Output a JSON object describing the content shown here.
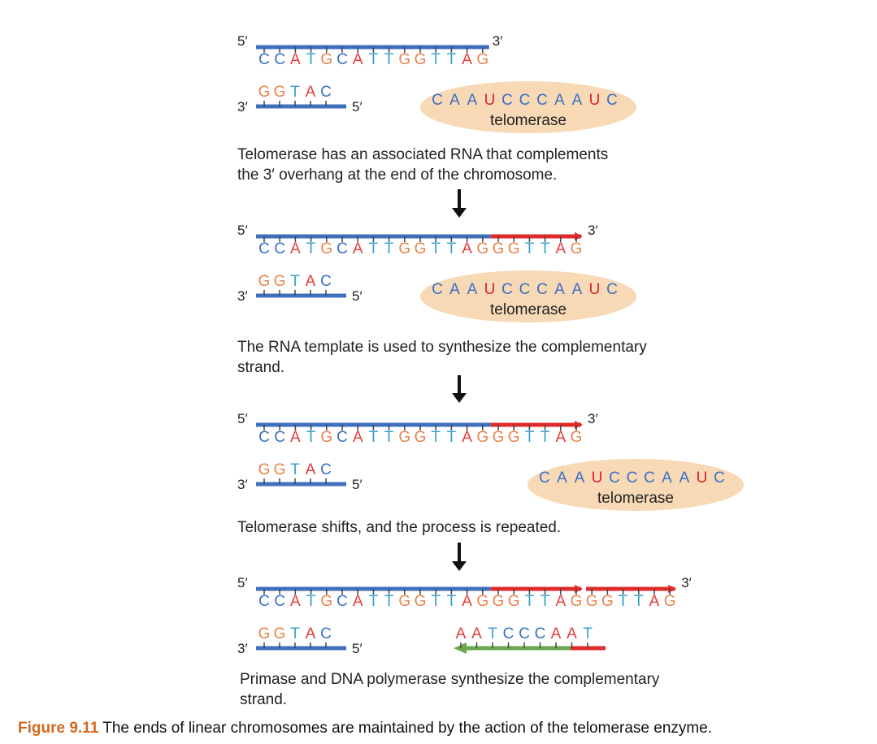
{
  "colors": {
    "A": "#e83b3b",
    "C": "#3a6fc4",
    "G": "#e8834a",
    "T": "#3aa0d0",
    "U": "#d9232e",
    "RNA_A": "#3a6fc4",
    "strand_blue": "#3f6fbf",
    "strand_red": "#e02b2b",
    "strand_green": "#6aa84f",
    "telomerase_bg": "#f7d9b5",
    "caption_label": "#d2691e"
  },
  "labels": {
    "five_prime": "5′",
    "three_prime": "3′"
  },
  "rna_template": "CAAUCCCAAUC",
  "panels": [
    {
      "top_strand": "CCATGCATTGGTTAG",
      "bottom_strand": "GGTAC",
      "telomerase_label": "telomerase",
      "caption_line1": "Telomerase has an associated RNA that complements",
      "caption_line2": "the 3′ overhang at the end of the chromosome."
    },
    {
      "top_strand": "CCATGCATTGGTTAGGGTTAG",
      "bottom_strand": "GGTAC",
      "telomerase_label": "telomerase",
      "caption_line1": "The RNA template is used to synthesize the complementary",
      "caption_line2": "strand."
    },
    {
      "top_strand": "CCATGCATTGGTTAGGGTTAG",
      "bottom_strand": "GGTAC",
      "telomerase_label": "telomerase",
      "caption_line1": "Telomerase shifts, and the process is repeated.",
      "caption_line2": ""
    },
    {
      "top_strand": "CCATGCATTGGTTAGGGTTAGGGTTAG",
      "bottom_strand": "GGTAC",
      "new_strand": "AATCCCAAT",
      "caption_line1": "Primase and DNA polymerase synthesize the complementary",
      "caption_line2": "strand."
    }
  ],
  "figure_caption": {
    "label": "Figure 9.11",
    "text": " The ends of linear chromosomes are maintained by the action of the telomerase enzyme."
  }
}
